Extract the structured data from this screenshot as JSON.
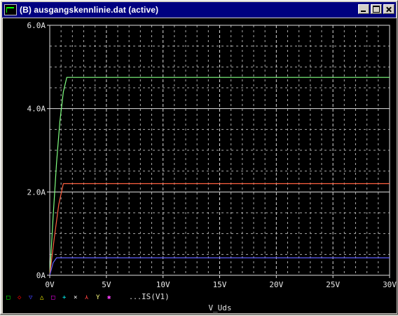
{
  "window": {
    "title": "(B) ausgangskennlinie.dat (active)"
  },
  "colors": {
    "axis": "#e0e0e0",
    "grid": "#c8c8c8",
    "label": "#e8e8e8",
    "legend_text": "#e0e0e0"
  },
  "legend": {
    "markers": [
      {
        "symbol": "□",
        "color": "#00ff00"
      },
      {
        "symbol": "◇",
        "color": "#ff0000"
      },
      {
        "symbol": "▽",
        "color": "#4040ff"
      },
      {
        "symbol": "△",
        "color": "#ffff00"
      },
      {
        "symbol": "□",
        "color": "#ff00ff"
      },
      {
        "symbol": "+",
        "color": "#00ffff"
      },
      {
        "symbol": "×",
        "color": "#ffffff"
      },
      {
        "symbol": "⋏",
        "color": "#ff4040"
      },
      {
        "symbol": "Y",
        "color": "#ffff80"
      },
      {
        "symbol": "✱",
        "color": "#ff40ff"
      }
    ],
    "ellipsis": "...",
    "trace_label": "IS(V1)"
  },
  "chart_data": {
    "type": "line",
    "xlabel": "V_Uds",
    "ylabel": "",
    "xlim": [
      0,
      30
    ],
    "ylim": [
      0,
      6
    ],
    "x_ticks": [
      {
        "value": 0,
        "label": "0V"
      },
      {
        "value": 5,
        "label": "5V"
      },
      {
        "value": 10,
        "label": "10V"
      },
      {
        "value": 15,
        "label": "15V"
      },
      {
        "value": 20,
        "label": "20V"
      },
      {
        "value": 25,
        "label": "25V"
      },
      {
        "value": 30,
        "label": "30V"
      }
    ],
    "y_ticks": [
      {
        "value": 0,
        "label": "0A"
      },
      {
        "value": 2,
        "label": "2.0A"
      },
      {
        "value": 4,
        "label": "4.0A"
      },
      {
        "value": 6,
        "label": "6.0A"
      }
    ],
    "grid": true,
    "series": [
      {
        "color": "#80ff80",
        "x": [
          0,
          0.3,
          0.6,
          0.9,
          1.2,
          1.5,
          30
        ],
        "y": [
          0,
          1.4,
          2.7,
          3.7,
          4.4,
          4.75,
          4.75
        ]
      },
      {
        "color": "#ff6040",
        "x": [
          0,
          0.4,
          0.8,
          1.2,
          30
        ],
        "y": [
          0,
          0.9,
          1.7,
          2.2,
          2.2
        ]
      },
      {
        "color": "#6060ff",
        "x": [
          0,
          0.3,
          0.6,
          30
        ],
        "y": [
          0,
          0.3,
          0.42,
          0.42
        ]
      }
    ]
  }
}
